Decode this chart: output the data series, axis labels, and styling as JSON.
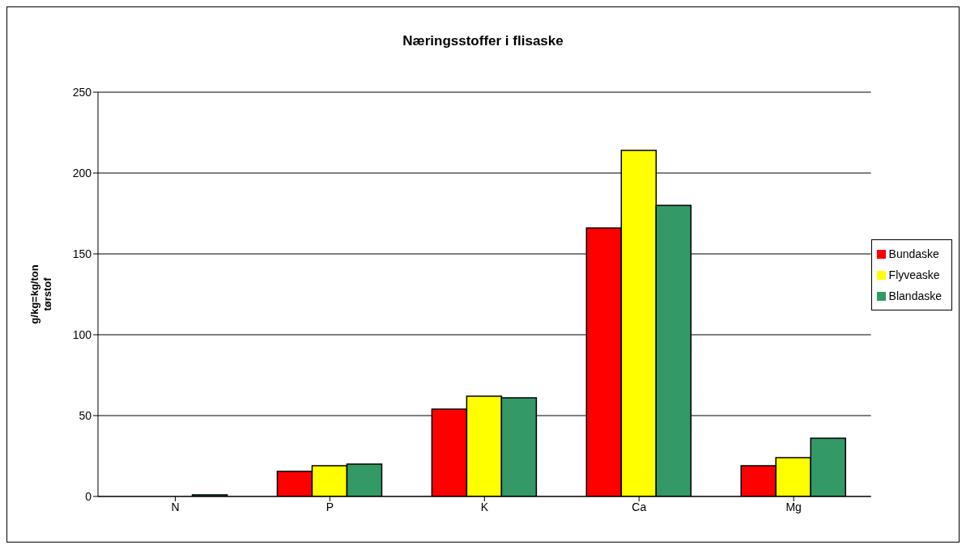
{
  "chart_data": {
    "type": "bar",
    "title": "Næringsstoffer i flisaske",
    "ylabel": "g/kg=kg/ton\ntørstof",
    "categories": [
      "N",
      "P",
      "K",
      "Ca",
      "Mg"
    ],
    "series": [
      {
        "name": "Bundaske",
        "color": "#ff0000",
        "values": [
          0,
          15.5,
          54,
          166,
          19
        ]
      },
      {
        "name": "Flyveaske",
        "color": "#ffff00",
        "values": [
          0,
          19,
          62,
          214,
          24
        ]
      },
      {
        "name": "Blandaske",
        "color": "#339966",
        "values": [
          1,
          20,
          61,
          180,
          36
        ]
      }
    ],
    "ylim": [
      0,
      250
    ],
    "yticks": [
      0,
      50,
      100,
      150,
      200,
      250
    ],
    "grid": "y",
    "legend": "right"
  }
}
